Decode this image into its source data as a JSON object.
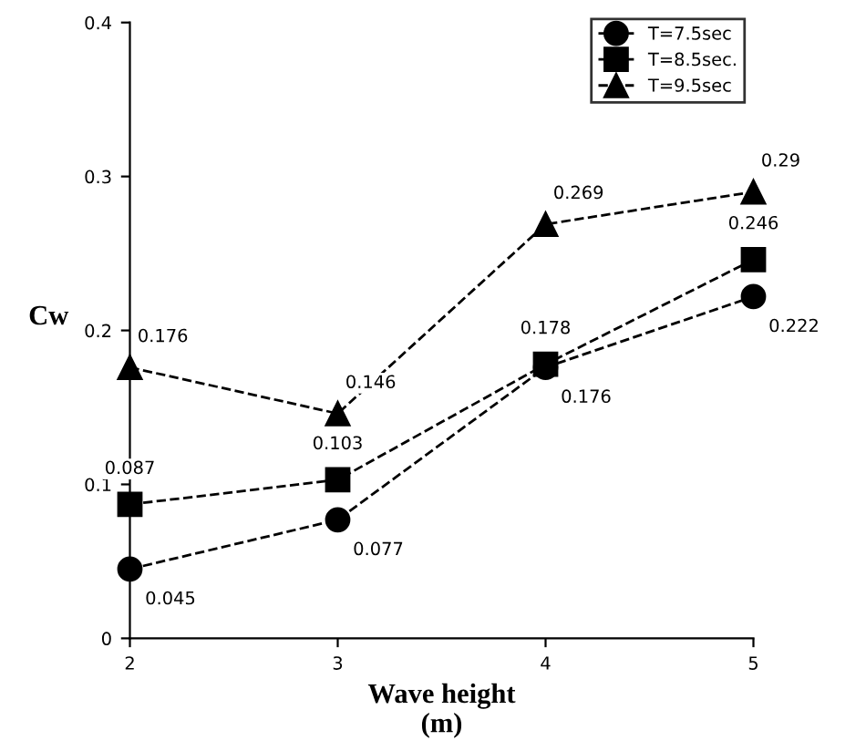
{
  "chart_data": {
    "type": "line",
    "xlabel": "Wave height\n(m)",
    "ylabel": "Cw",
    "x": [
      2,
      3,
      4,
      5
    ],
    "xlim": [
      2,
      5
    ],
    "xticks": [
      2,
      3,
      4,
      5
    ],
    "ylim": [
      0,
      0.4
    ],
    "yticks": [
      0,
      0.1,
      0.2,
      0.3,
      0.4
    ],
    "legend": "top right",
    "line_style": "dashed",
    "data_labels": true,
    "series": [
      {
        "name": "T=7.5sec",
        "color": "#000000",
        "marker": "circle",
        "values": [
          0.045,
          0.077,
          0.176,
          0.222
        ]
      },
      {
        "name": "T=8.5sec.",
        "color": "#000000",
        "marker": "square",
        "values": [
          0.087,
          0.103,
          0.178,
          0.246
        ]
      },
      {
        "name": "T=9.5sec",
        "color": "#000000",
        "marker": "triangle",
        "values": [
          0.176,
          0.146,
          0.269,
          0.29
        ]
      }
    ]
  }
}
